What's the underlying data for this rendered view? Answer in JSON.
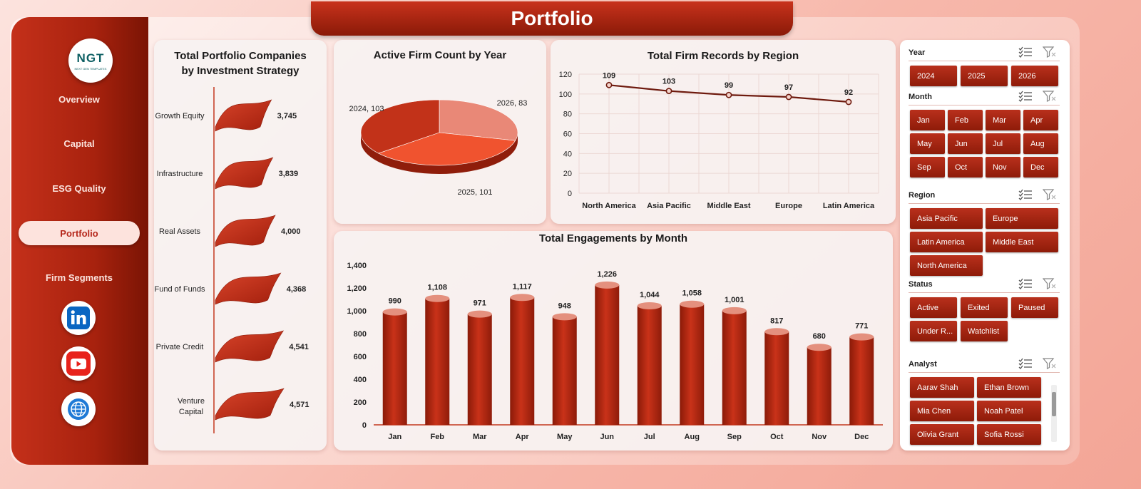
{
  "title": "Portfolio",
  "logo": {
    "text": "NGT",
    "subtext": "NEXT GEN TEMPLATES"
  },
  "nav": [
    {
      "label": "Overview",
      "active": false
    },
    {
      "label": "Capital",
      "active": false
    },
    {
      "label": "ESG Quality",
      "active": false
    },
    {
      "label": "Portfolio",
      "active": true
    },
    {
      "label": "Firm Segments",
      "active": false
    }
  ],
  "social": [
    {
      "icon": "linkedin-icon",
      "color": "#0a66c2"
    },
    {
      "icon": "youtube-icon",
      "color": "#e8221b"
    },
    {
      "icon": "globe-icon",
      "color": "#1f7ad6"
    }
  ],
  "colors": {
    "accent": "#a8220e",
    "dark": "#7a1404",
    "chart_bar": "#b82d14",
    "line": "#6e1a0e"
  },
  "charts": {
    "strategy_title": "Total Portfolio Companies by Investment Strategy",
    "pie_title": "Active Firm Count by Year",
    "region_title": "Total Firm Records by Region",
    "month_title": "Total Engagements  by Month"
  },
  "chart_data": [
    {
      "type": "bar",
      "title": "Total Portfolio Companies by Investment Strategy",
      "categories": [
        "Growth Equity",
        "Infrastructure",
        "Real Assets",
        "Fund of Funds",
        "Private Credit",
        "Venture Capital"
      ],
      "values": [
        3745,
        3839,
        4000,
        4368,
        4541,
        4571
      ],
      "data_labels": [
        "3,745",
        "3,839",
        "4,000",
        "4,368",
        "4,541",
        "4,571"
      ]
    },
    {
      "type": "pie",
      "title": "Active Firm Count by Year",
      "categories": [
        "2024",
        "2025",
        "2026"
      ],
      "values": [
        103,
        101,
        83
      ],
      "data_labels": [
        "2024, 103",
        "2025, 101",
        "2026, 83"
      ]
    },
    {
      "type": "line",
      "title": "Total Firm Records by Region",
      "categories": [
        "North America",
        "Asia Pacific",
        "Middle East",
        "Europe",
        "Latin America"
      ],
      "values": [
        109,
        103,
        99,
        97,
        92
      ],
      "ylim": [
        0,
        120
      ],
      "yticks": [
        "0",
        "20",
        "40",
        "60",
        "80",
        "100",
        "120"
      ],
      "grid": true
    },
    {
      "type": "bar",
      "title": "Total Engagements  by Month",
      "categories": [
        "Jan",
        "Feb",
        "Mar",
        "Apr",
        "May",
        "Jun",
        "Jul",
        "Aug",
        "Sep",
        "Oct",
        "Nov",
        "Dec"
      ],
      "values": [
        990,
        1108,
        971,
        1117,
        948,
        1226,
        1044,
        1058,
        1001,
        817,
        680,
        771
      ],
      "data_labels": [
        "990",
        "1,108",
        "971",
        "1,117",
        "948",
        "1,226",
        "1,044",
        "1,058",
        "1,001",
        "817",
        "680",
        "771"
      ],
      "ylim": [
        0,
        1400
      ],
      "yticks": [
        "0",
        "200",
        "400",
        "600",
        "800",
        "1,000",
        "1,200",
        "1,400"
      ]
    }
  ],
  "slicers": {
    "year": {
      "label": "Year",
      "items": [
        "2024",
        "2025",
        "2026"
      ]
    },
    "month": {
      "label": "Month",
      "items": [
        "Jan",
        "Feb",
        "Mar",
        "Apr",
        "May",
        "Jun",
        "Jul",
        "Aug",
        "Sep",
        "Oct",
        "Nov",
        "Dec"
      ]
    },
    "region": {
      "label": "Region",
      "items": [
        "Asia Pacific",
        "Europe",
        "Latin America",
        "Middle East",
        "North America"
      ]
    },
    "status": {
      "label": "Status",
      "items": [
        "Active",
        "Exited",
        "Paused",
        "Under R...",
        "Watchlist"
      ]
    },
    "analyst": {
      "label": "Analyst",
      "items": [
        "Aarav Shah",
        "Ethan Brown",
        "Mia Chen",
        "Noah Patel",
        "Olivia Grant",
        "Sofia Rossi"
      ]
    }
  }
}
